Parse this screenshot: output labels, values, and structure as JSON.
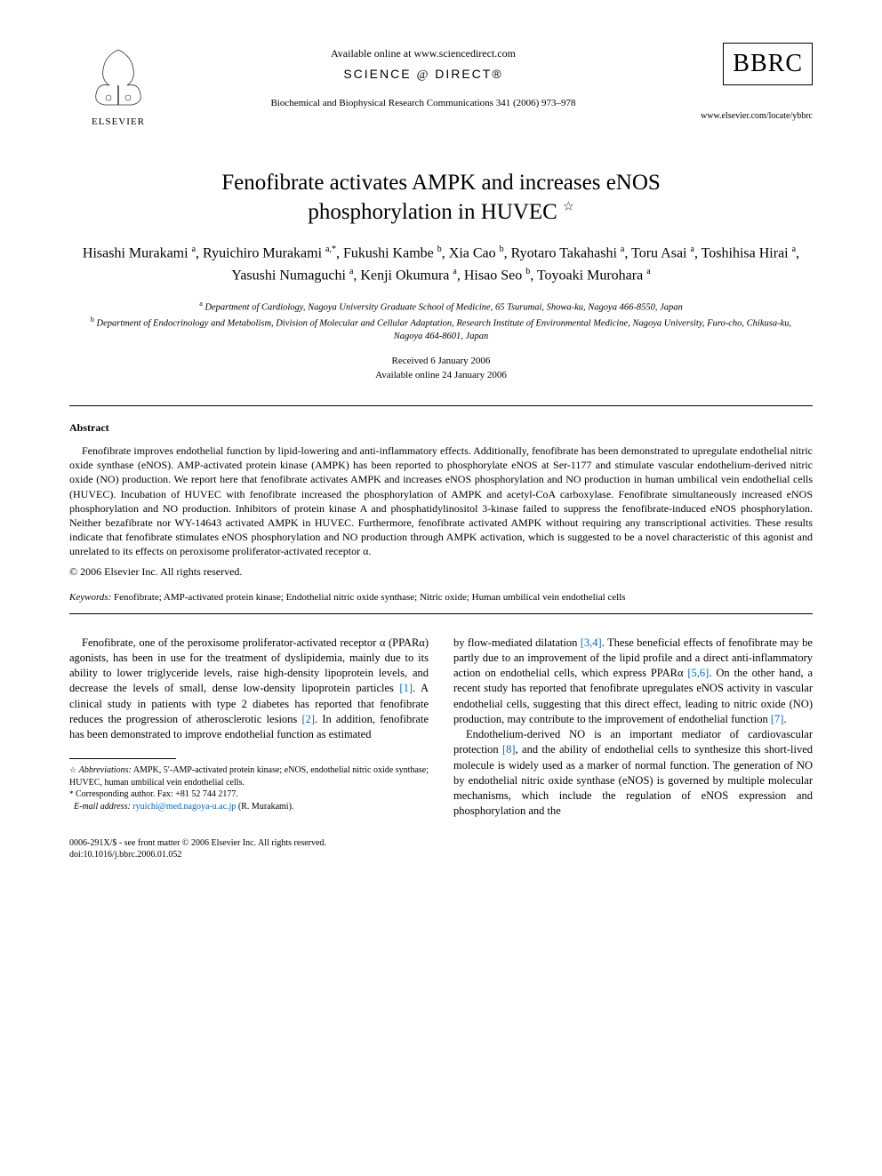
{
  "header": {
    "elsevier_label": "ELSEVIER",
    "available_online": "Available online at www.sciencedirect.com",
    "science_direct": "SCIENCE",
    "science_direct2": "DIRECT",
    "journal_citation": "Biochemical and Biophysical Research Communications 341 (2006) 973–978",
    "bbrc": "BBRC",
    "locate_url": "www.elsevier.com/locate/ybbrc"
  },
  "title": {
    "line1": "Fenofibrate activates AMPK and increases eNOS",
    "line2": "phosphorylation in HUVEC",
    "star": "☆"
  },
  "authors_html": "Hisashi Murakami <sup>a</sup>, Ryuichiro Murakami <sup>a,*</sup>, Fukushi Kambe <sup>b</sup>, Xia Cao <sup>b</sup>, Ryotaro Takahashi <sup>a</sup>, Toru Asai <sup>a</sup>, Toshihisa Hirai <sup>a</sup>, Yasushi Numaguchi <sup>a</sup>, Kenji Okumura <sup>a</sup>, Hisao Seo <sup>b</sup>, Toyoaki Murohara <sup>a</sup>",
  "affiliations": {
    "a": "Department of Cardiology, Nagoya University Graduate School of Medicine, 65 Tsurumai, Showa-ku, Nagoya 466-8550, Japan",
    "b": "Department of Endocrinology and Metabolism, Division of Molecular and Cellular Adaptation, Research Institute of Environmental Medicine, Nagoya University, Furo-cho, Chikusa-ku, Nagoya 464-8601, Japan"
  },
  "dates": {
    "received": "Received 6 January 2006",
    "online": "Available online 24 January 2006"
  },
  "abstract": {
    "heading": "Abstract",
    "body": "Fenofibrate improves endothelial function by lipid-lowering and anti-inflammatory effects. Additionally, fenofibrate has been demonstrated to upregulate endothelial nitric oxide synthase (eNOS). AMP-activated protein kinase (AMPK) has been reported to phosphorylate eNOS at Ser-1177 and stimulate vascular endothelium-derived nitric oxide (NO) production. We report here that fenofibrate activates AMPK and increases eNOS phosphorylation and NO production in human umbilical vein endothelial cells (HUVEC). Incubation of HUVEC with fenofibrate increased the phosphorylation of AMPK and acetyl-CoA carboxylase. Fenofibrate simultaneously increased eNOS phosphorylation and NO production. Inhibitors of protein kinase A and phosphatidylinositol 3-kinase failed to suppress the fenofibrate-induced eNOS phosphorylation. Neither bezafibrate nor WY-14643 activated AMPK in HUVEC. Furthermore, fenofibrate activated AMPK without requiring any transcriptional activities. These results indicate that fenofibrate stimulates eNOS phosphorylation and NO production through AMPK activation, which is suggested to be a novel characteristic of this agonist and unrelated to its effects on peroxisome proliferator-activated receptor α.",
    "copyright": "© 2006 Elsevier Inc. All rights reserved."
  },
  "keywords": {
    "label": "Keywords:",
    "text": "Fenofibrate; AMP-activated protein kinase; Endothelial nitric oxide synthase; Nitric oxide; Human umbilical vein endothelial cells"
  },
  "body": {
    "col1_p1": "Fenofibrate, one of the peroxisome proliferator-activated receptor α (PPARα) agonists, has been in use for the treatment of dyslipidemia, mainly due to its ability to lower triglyceride levels, raise high-density lipoprotein levels, and decrease the levels of small, dense low-density lipoprotein particles [1]. A clinical study in patients with type 2 diabetes has reported that fenofibrate reduces the progression of atherosclerotic lesions [2]. In addition, fenofibrate has been demonstrated to improve endothelial function as estimated",
    "col2_p1": "by flow-mediated dilatation [3,4]. These beneficial effects of fenofibrate may be partly due to an improvement of the lipid profile and a direct anti-inflammatory action on endothelial cells, which express PPARα [5,6]. On the other hand, a recent study has reported that fenofibrate upregulates eNOS activity in vascular endothelial cells, suggesting that this direct effect, leading to nitric oxide (NO) production, may contribute to the improvement of endothelial function [7].",
    "col2_p2": "Endothelium-derived NO is an important mediator of cardiovascular protection [8], and the ability of endothelial cells to synthesize this short-lived molecule is widely used as a marker of normal function. The generation of NO by endothelial nitric oxide synthase (eNOS) is governed by multiple molecular mechanisms, which include the regulation of eNOS expression and phosphorylation and the"
  },
  "footnotes": {
    "abbrev_sym": "☆",
    "abbrev_label": "Abbreviations:",
    "abbrev_text": "AMPK, 5′-AMP-activated protein kinase; eNOS, endothelial nitric oxide synthase; HUVEC, human umbilical vein endothelial cells.",
    "corr_sym": "*",
    "corr_text": "Corresponding author. Fax: +81 52 744 2177.",
    "email_label": "E-mail address:",
    "email_value": "ryuichi@med.nagoya-u.ac.jp",
    "email_name": "(R. Murakami)."
  },
  "footer": {
    "line1": "0006-291X/$ - see front matter © 2006 Elsevier Inc. All rights reserved.",
    "line2": "doi:10.1016/j.bbrc.2006.01.052"
  },
  "ref_links": {
    "r1": "[1]",
    "r2": "[2]",
    "r34": "[3,4]",
    "r56": "[5,6]",
    "r7": "[7]",
    "r8": "[8]"
  },
  "colors": {
    "link": "#0066cc",
    "text": "#000000",
    "background": "#ffffff"
  }
}
